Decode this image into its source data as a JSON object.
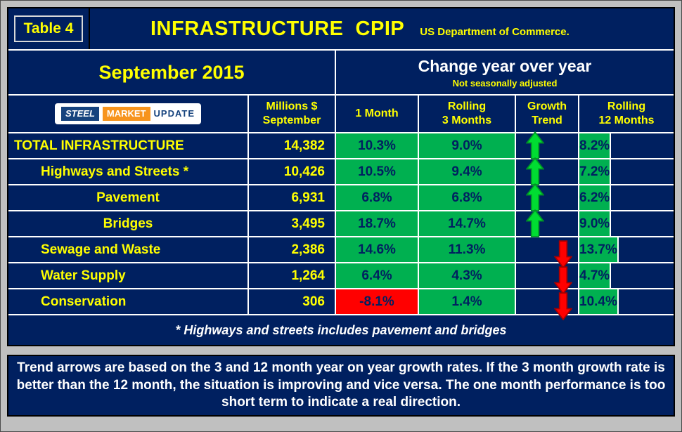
{
  "header": {
    "table_label": "Table 4",
    "title": "INFRASTRUCTURE  CPIP",
    "agency": "US Department of Commerce."
  },
  "period": {
    "month_title": "September 2015",
    "change_title": "Change year over year",
    "adjustment_note": "Not seasonally adjusted"
  },
  "logo": {
    "steel": "STEEL",
    "market": "MARKET",
    "update": "UPDATE"
  },
  "columns": {
    "millions": "Millions $\nSeptember",
    "one_month": "1 Month",
    "rolling_3": "Rolling\n3 Months",
    "growth_trend": "Growth\nTrend",
    "rolling_12": "Rolling\n12 Months"
  },
  "rows": [
    {
      "label": "TOTAL INFRASTRUCTURE",
      "millions": "14,382",
      "one_month": "10.3%",
      "rolling3": "9.0%",
      "trend": "up",
      "rolling12": "8.2%"
    },
    {
      "label": "Highways and Streets *",
      "millions": "10,426",
      "one_month": "10.5%",
      "rolling3": "9.4%",
      "trend": "up",
      "rolling12": "7.2%"
    },
    {
      "label": "Pavement",
      "millions": "6,931",
      "one_month": "6.8%",
      "rolling3": "6.8%",
      "trend": "up",
      "rolling12": "6.2%"
    },
    {
      "label": "Bridges",
      "millions": "3,495",
      "one_month": "18.7%",
      "rolling3": "14.7%",
      "trend": "up",
      "rolling12": "9.0%"
    },
    {
      "label": "Sewage and Waste",
      "millions": "2,386",
      "one_month": "14.6%",
      "rolling3": "11.3%",
      "trend": "down",
      "rolling12": "13.7%"
    },
    {
      "label": "Water Supply",
      "millions": "1,264",
      "one_month": "6.4%",
      "rolling3": "4.3%",
      "trend": "down",
      "rolling12": "4.7%"
    },
    {
      "label": "Conservation",
      "millions": "306",
      "one_month": "-8.1%",
      "rolling3": "1.4%",
      "trend": "down",
      "rolling12": "10.4%"
    }
  ],
  "footnote": "* Highways and streets includes pavement and bridges",
  "bottom_note": "Trend arrows are based on the 3 and 12 month year on year growth rates. If the 3 month growth rate is better than the 12 month, the situation is improving and vice versa. The one month performance is too short term to indicate a real direction.",
  "colors": {
    "navy": "#002060",
    "yellow": "#FFFF00",
    "green_cell": "#00B050",
    "red_cell": "#FF0000",
    "arrow_green": "#00DC32",
    "arrow_red": "#FF0000",
    "frame_gray": "#C0C0C0",
    "logo_orange": "#F7941D",
    "logo_blue": "#16437E"
  },
  "chart_data": {
    "type": "table",
    "title": "INFRASTRUCTURE CPIP",
    "source": "US Department of Commerce",
    "period": "September 2015",
    "subtitle": "Change year over year — Not seasonally adjusted",
    "columns": [
      "Category",
      "Millions $ September",
      "1 Month",
      "Rolling 3 Months",
      "Growth Trend",
      "Rolling 12 Months"
    ],
    "rows": [
      [
        "TOTAL INFRASTRUCTURE",
        14382,
        "10.3%",
        "9.0%",
        "up",
        "8.2%"
      ],
      [
        "Highways and Streets *",
        10426,
        "10.5%",
        "9.4%",
        "up",
        "7.2%"
      ],
      [
        "Pavement",
        6931,
        "6.8%",
        "6.8%",
        "up",
        "6.2%"
      ],
      [
        "Bridges",
        3495,
        "18.7%",
        "14.7%",
        "up",
        "9.0%"
      ],
      [
        "Sewage and Waste",
        2386,
        "14.6%",
        "11.3%",
        "down",
        "13.7%"
      ],
      [
        "Water Supply",
        1264,
        "6.4%",
        "4.3%",
        "down",
        "4.7%"
      ],
      [
        "Conservation",
        306,
        "-8.1%",
        "1.4%",
        "down",
        "10.4%"
      ]
    ],
    "footnote": "* Highways and streets includes pavement and bridges",
    "note": "Trend arrows are based on the 3 and 12 month year on year growth rates. If the 3 month growth rate is better than the 12 month, the situation is improving and vice versa. The one month performance is too short term to indicate a real direction."
  }
}
